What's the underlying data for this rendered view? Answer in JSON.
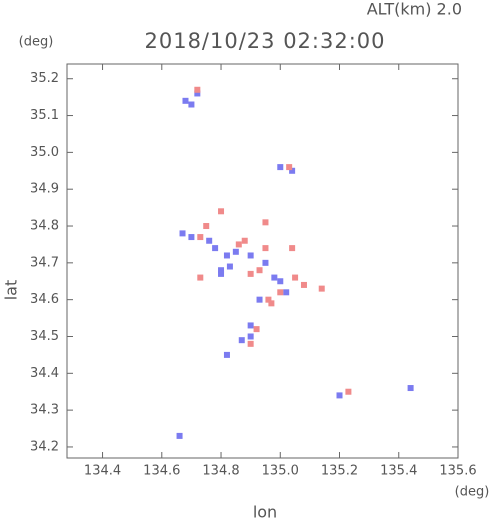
{
  "chart_data": {
    "type": "scatter",
    "title": "2018/10/23 02:32:00",
    "subtitle": "ALT(km) 2.0",
    "x_label": "lon",
    "y_label": "lat",
    "x_unit": "(deg)",
    "y_unit": "(deg)",
    "xlim": [
      134.28,
      135.6
    ],
    "ylim": [
      34.17,
      35.24
    ],
    "xticks": [
      134.4,
      134.6,
      134.8,
      {
        "value": 135,
        "label": "135.0"
      },
      135.2,
      135.4,
      135.6
    ],
    "yticks": [
      34.2,
      34.3,
      34.4,
      34.5,
      34.6,
      34.7,
      34.8,
      34.9,
      {
        "value": 35,
        "label": "35.0"
      },
      35.1,
      35.2
    ],
    "series": [
      {
        "color": "#7b7bf0",
        "x": [
          134.68,
          134.7,
          134.72,
          134.67,
          134.7,
          134.76,
          134.78,
          134.82,
          134.85,
          134.83,
          134.8,
          134.9,
          134.95,
          134.98,
          135.0,
          135.02,
          134.93,
          134.9,
          134.87,
          134.9,
          134.82,
          135.0,
          135.04,
          135.2,
          135.44,
          134.66,
          134.8
        ],
        "y": [
          35.14,
          35.13,
          35.16,
          34.78,
          34.77,
          34.76,
          34.74,
          34.72,
          34.73,
          34.69,
          34.68,
          34.72,
          34.7,
          34.66,
          34.65,
          34.62,
          34.6,
          34.5,
          34.49,
          34.53,
          34.45,
          34.96,
          34.95,
          34.34,
          34.36,
          34.23,
          34.67
        ]
      },
      {
        "color": "#f08a8a",
        "x": [
          134.72,
          134.8,
          134.75,
          134.73,
          134.88,
          134.86,
          134.95,
          135.04,
          134.9,
          134.93,
          135.05,
          135.08,
          135.14,
          135.0,
          134.96,
          134.92,
          134.9,
          134.73,
          134.95,
          135.23,
          135.03,
          134.97
        ],
        "y": [
          35.17,
          34.84,
          34.8,
          34.77,
          34.76,
          34.75,
          34.74,
          34.74,
          34.67,
          34.68,
          34.66,
          34.64,
          34.63,
          34.62,
          34.6,
          34.52,
          34.48,
          34.66,
          34.81,
          34.35,
          34.96,
          34.59
        ]
      }
    ]
  }
}
